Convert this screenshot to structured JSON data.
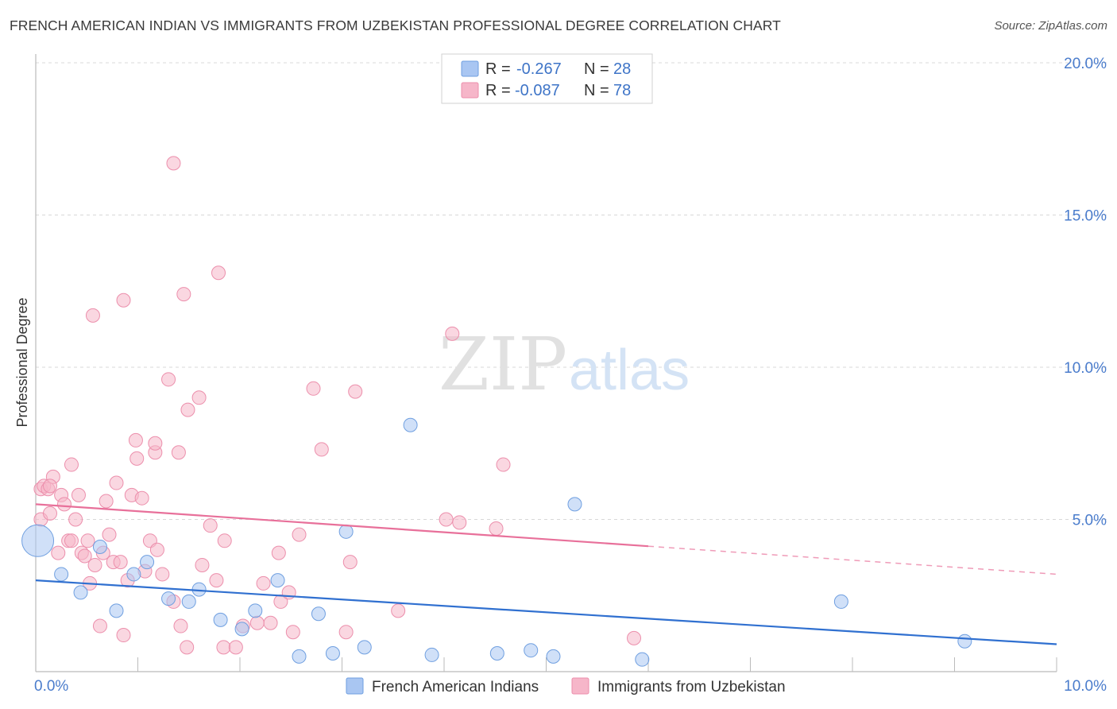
{
  "title": "FRENCH AMERICAN INDIAN VS IMMIGRANTS FROM UZBEKISTAN PROFESSIONAL DEGREE CORRELATION CHART",
  "source": "Source: ZipAtlas.com",
  "watermark": {
    "zip": "ZIP",
    "atlas": "atlas"
  },
  "colors": {
    "blue_fill": "#a9c6f2",
    "blue_stroke": "#6f9fe0",
    "blue_line": "#3070d0",
    "pink_fill": "#f6b6c9",
    "pink_stroke": "#ec8fac",
    "pink_line": "#e8709a",
    "accent_text": "#3e74c7",
    "grid": "#d8d8d8"
  },
  "legend_top": [
    {
      "r_label": "R =",
      "r_value": "-0.267",
      "n_label": "N =",
      "n_value": "28",
      "color": "blue"
    },
    {
      "r_label": "R =",
      "r_value": "-0.087",
      "n_label": "N =",
      "n_value": "78",
      "color": "pink"
    }
  ],
  "chart_data": {
    "type": "scatter",
    "title": "FRENCH AMERICAN INDIAN VS IMMIGRANTS FROM UZBEKISTAN PROFESSIONAL DEGREE CORRELATION CHART",
    "xlabel": "",
    "ylabel": "Professional Degree",
    "xlim": [
      0,
      10
    ],
    "ylim": [
      0,
      20
    ],
    "x_tick_labels": [
      "0.0%",
      "10.0%"
    ],
    "y_tick_labels": [
      "5.0%",
      "10.0%",
      "15.0%",
      "20.0%"
    ],
    "y_ticks": [
      5,
      10,
      15,
      20
    ],
    "grid": true,
    "legend_position": "top-center",
    "series": [
      {
        "name": "French American Indians",
        "color": "blue",
        "trend": {
          "x0": 0,
          "y0": 3.0,
          "x1": 10,
          "y1": 0.9,
          "dashed_from": null
        },
        "points": [
          {
            "x": 0.02,
            "y": 4.3,
            "big": true
          },
          {
            "x": 0.25,
            "y": 3.2
          },
          {
            "x": 0.44,
            "y": 2.6
          },
          {
            "x": 0.63,
            "y": 4.1
          },
          {
            "x": 0.79,
            "y": 2.0
          },
          {
            "x": 0.96,
            "y": 3.2
          },
          {
            "x": 1.09,
            "y": 3.6
          },
          {
            "x": 1.3,
            "y": 2.4
          },
          {
            "x": 1.5,
            "y": 2.3
          },
          {
            "x": 1.6,
            "y": 2.7
          },
          {
            "x": 1.81,
            "y": 1.7
          },
          {
            "x": 2.02,
            "y": 1.4
          },
          {
            "x": 2.15,
            "y": 2.0
          },
          {
            "x": 2.37,
            "y": 3.0
          },
          {
            "x": 2.58,
            "y": 0.5
          },
          {
            "x": 2.77,
            "y": 1.9
          },
          {
            "x": 2.91,
            "y": 0.6
          },
          {
            "x": 3.04,
            "y": 4.6
          },
          {
            "x": 3.22,
            "y": 0.8
          },
          {
            "x": 3.67,
            "y": 8.1
          },
          {
            "x": 3.88,
            "y": 0.55
          },
          {
            "x": 4.52,
            "y": 0.6
          },
          {
            "x": 4.85,
            "y": 0.7
          },
          {
            "x": 5.07,
            "y": 0.5
          },
          {
            "x": 5.28,
            "y": 5.5
          },
          {
            "x": 5.94,
            "y": 0.4
          },
          {
            "x": 7.89,
            "y": 2.3
          },
          {
            "x": 9.1,
            "y": 1.0
          }
        ]
      },
      {
        "name": "Immigrants from Uzbekistan",
        "color": "pink",
        "trend": {
          "x0": 0,
          "y0": 5.5,
          "x1": 10,
          "y1": 3.2,
          "dashed_from": 6.0
        },
        "points": [
          {
            "x": 0.05,
            "y": 6.0
          },
          {
            "x": 0.05,
            "y": 5.0
          },
          {
            "x": 0.08,
            "y": 6.1
          },
          {
            "x": 0.12,
            "y": 6.0
          },
          {
            "x": 0.14,
            "y": 5.2
          },
          {
            "x": 0.17,
            "y": 6.4
          },
          {
            "x": 0.22,
            "y": 3.9
          },
          {
            "x": 0.25,
            "y": 5.8
          },
          {
            "x": 0.28,
            "y": 5.5
          },
          {
            "x": 0.32,
            "y": 4.3
          },
          {
            "x": 0.35,
            "y": 4.3
          },
          {
            "x": 0.35,
            "y": 6.8
          },
          {
            "x": 0.39,
            "y": 5.0
          },
          {
            "x": 0.42,
            "y": 5.8
          },
          {
            "x": 0.45,
            "y": 3.9
          },
          {
            "x": 0.48,
            "y": 3.8
          },
          {
            "x": 0.51,
            "y": 4.3
          },
          {
            "x": 0.53,
            "y": 2.9
          },
          {
            "x": 0.56,
            "y": 11.7
          },
          {
            "x": 0.58,
            "y": 3.5
          },
          {
            "x": 0.63,
            "y": 1.5
          },
          {
            "x": 0.66,
            "y": 3.9
          },
          {
            "x": 0.69,
            "y": 5.6
          },
          {
            "x": 0.72,
            "y": 4.5
          },
          {
            "x": 0.76,
            "y": 3.6
          },
          {
            "x": 0.79,
            "y": 6.2
          },
          {
            "x": 0.83,
            "y": 3.6
          },
          {
            "x": 0.86,
            "y": 12.2
          },
          {
            "x": 0.86,
            "y": 1.2
          },
          {
            "x": 0.9,
            "y": 3.0
          },
          {
            "x": 0.94,
            "y": 5.8
          },
          {
            "x": 0.98,
            "y": 7.6
          },
          {
            "x": 0.99,
            "y": 7.0
          },
          {
            "x": 1.04,
            "y": 5.7
          },
          {
            "x": 1.07,
            "y": 3.3
          },
          {
            "x": 1.12,
            "y": 4.3
          },
          {
            "x": 1.17,
            "y": 7.2
          },
          {
            "x": 1.17,
            "y": 7.5
          },
          {
            "x": 1.19,
            "y": 4.0
          },
          {
            "x": 1.24,
            "y": 3.2
          },
          {
            "x": 1.3,
            "y": 9.6
          },
          {
            "x": 1.35,
            "y": 2.3
          },
          {
            "x": 1.35,
            "y": 16.7
          },
          {
            "x": 1.4,
            "y": 7.2
          },
          {
            "x": 1.42,
            "y": 1.5
          },
          {
            "x": 1.45,
            "y": 12.4
          },
          {
            "x": 1.48,
            "y": 0.8
          },
          {
            "x": 1.49,
            "y": 8.6
          },
          {
            "x": 1.6,
            "y": 9.0
          },
          {
            "x": 1.63,
            "y": 3.5
          },
          {
            "x": 1.71,
            "y": 4.8
          },
          {
            "x": 1.77,
            "y": 3.0
          },
          {
            "x": 1.79,
            "y": 13.1
          },
          {
            "x": 1.84,
            "y": 0.8
          },
          {
            "x": 1.85,
            "y": 4.3
          },
          {
            "x": 1.96,
            "y": 0.8
          },
          {
            "x": 2.03,
            "y": 1.5
          },
          {
            "x": 2.17,
            "y": 1.6
          },
          {
            "x": 2.23,
            "y": 2.9
          },
          {
            "x": 2.3,
            "y": 1.6
          },
          {
            "x": 2.38,
            "y": 3.9
          },
          {
            "x": 2.4,
            "y": 2.3
          },
          {
            "x": 2.48,
            "y": 2.6
          },
          {
            "x": 2.52,
            "y": 1.3
          },
          {
            "x": 2.58,
            "y": 4.5
          },
          {
            "x": 2.72,
            "y": 9.3
          },
          {
            "x": 2.8,
            "y": 7.3
          },
          {
            "x": 3.04,
            "y": 1.3
          },
          {
            "x": 3.08,
            "y": 3.6
          },
          {
            "x": 3.13,
            "y": 9.2
          },
          {
            "x": 3.55,
            "y": 2.0
          },
          {
            "x": 4.02,
            "y": 5.0
          },
          {
            "x": 4.08,
            "y": 11.1
          },
          {
            "x": 4.15,
            "y": 4.9
          },
          {
            "x": 4.51,
            "y": 4.7
          },
          {
            "x": 4.58,
            "y": 6.8
          },
          {
            "x": 5.86,
            "y": 1.1
          },
          {
            "x": 0.14,
            "y": 6.1
          }
        ]
      }
    ]
  }
}
